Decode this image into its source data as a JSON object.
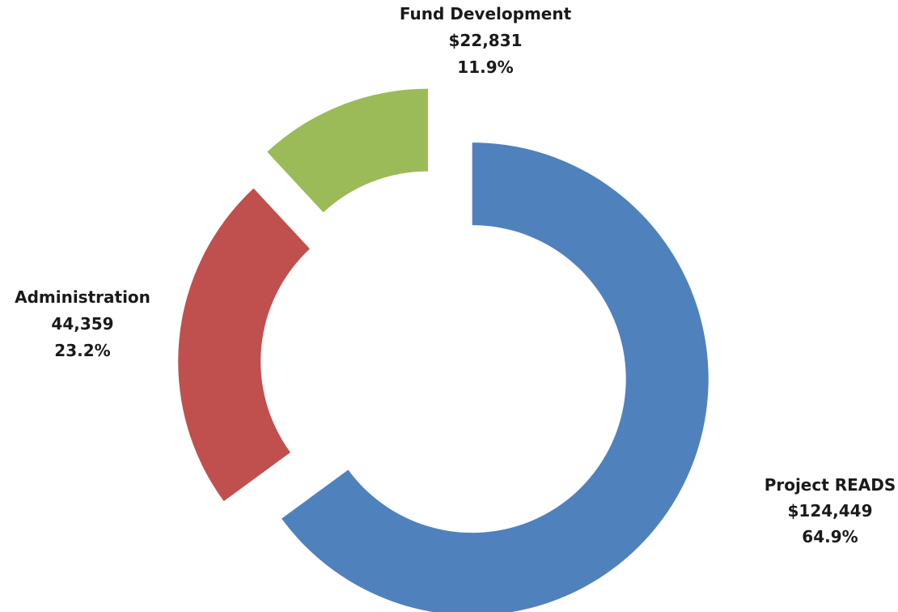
{
  "chart_data": {
    "type": "pie",
    "variant": "exploded-doughnut",
    "title": "",
    "slices": [
      {
        "name": "Project READS",
        "value": 124449,
        "value_label": "$124,449",
        "percent_label": "64.9%",
        "color": "#4F81BD"
      },
      {
        "name": "Administration",
        "value": 44359,
        "value_label": "44,359",
        "percent_label": "23.2%",
        "color": "#C0504D"
      },
      {
        "name": "Fund Development",
        "value": 22831,
        "value_label": "$22,831",
        "percent_label": "11.9%",
        "color": "#9BBB59"
      }
    ],
    "legend": "none"
  }
}
